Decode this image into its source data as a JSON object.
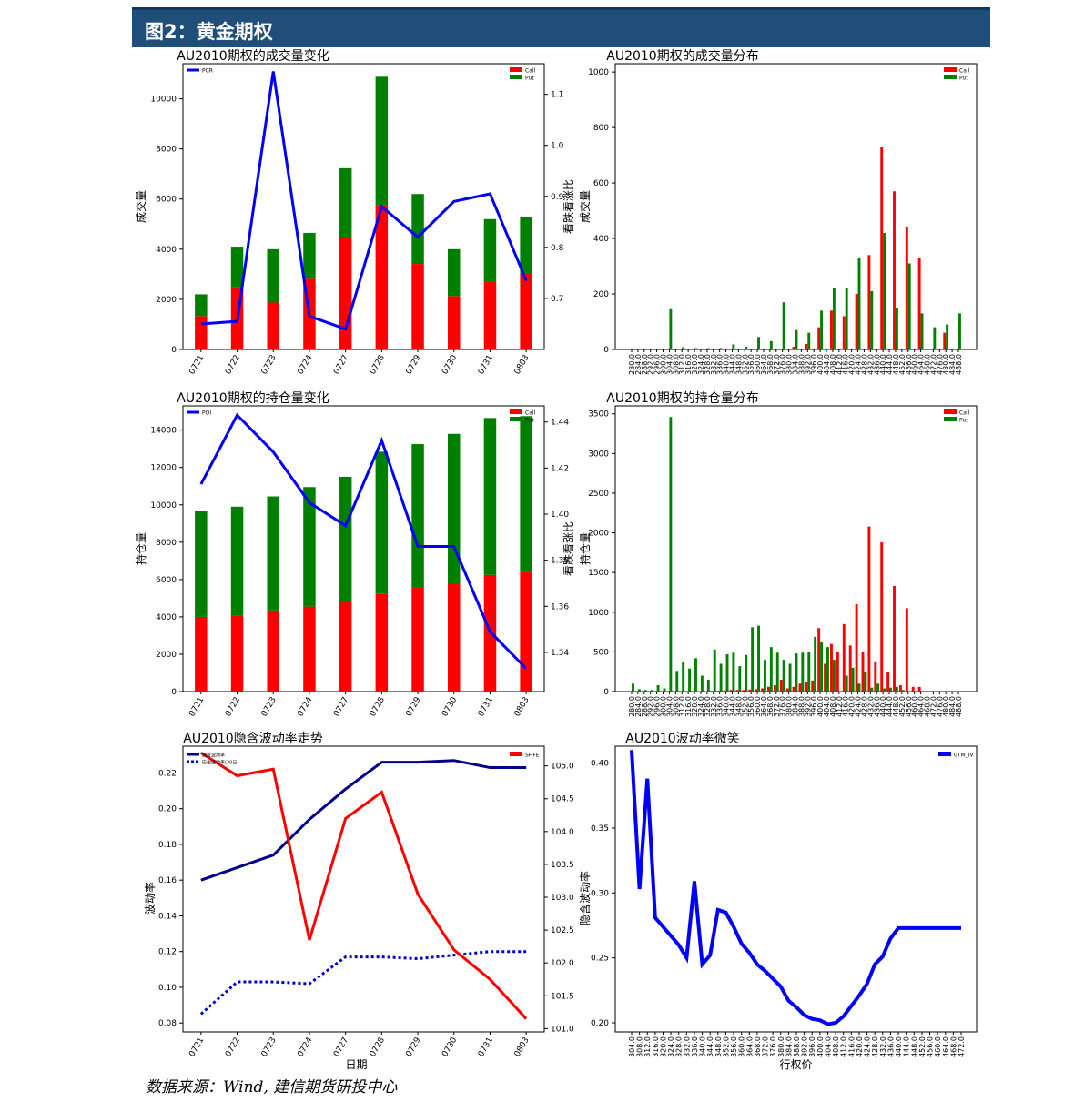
{
  "header": {
    "title": "图2：黄金期权"
  },
  "footer": {
    "source": "数据来源：Wind, 建信期货研投中心"
  },
  "colors": {
    "call": "#ff0000",
    "put": "#008000",
    "pcr": "#0000ff",
    "iv": "#00008b",
    "hv": "#0000cd",
    "fut": "#ff0000",
    "smile": "#0000ff"
  },
  "chart_data": [
    {
      "id": "volume-change",
      "type": "bar",
      "title": "AU2010期权的成交量变化",
      "ylabel": "成交量",
      "y2label": "看跌看涨比",
      "categories": [
        "0721",
        "0722",
        "0723",
        "0724",
        "0727",
        "0728",
        "0729",
        "0730",
        "0731",
        "0803"
      ],
      "series": [
        {
          "name": "Call",
          "values": [
            1330,
            2500,
            1870,
            2820,
            4430,
            5760,
            3410,
            2130,
            2720,
            3050
          ]
        },
        {
          "name": "Put",
          "values": [
            870,
            1600,
            2130,
            1830,
            2800,
            5120,
            2790,
            1870,
            2480,
            2220
          ]
        }
      ],
      "line": {
        "name": "PCR",
        "values": [
          0.65,
          0.655,
          1.145,
          0.665,
          0.64,
          0.88,
          0.82,
          0.89,
          0.905,
          0.735
        ]
      },
      "ylim": [
        0,
        11400
      ],
      "y2lim": [
        0.6,
        1.16
      ],
      "yticks": [
        0,
        2000,
        4000,
        6000,
        8000,
        10000
      ],
      "y2ticks": [
        0.7,
        0.8,
        0.9,
        1.0,
        1.1
      ],
      "y2ticklabels": [
        "0.7",
        "0.8",
        "0.9",
        "1.0",
        "1.1"
      ]
    },
    {
      "id": "volume-dist",
      "type": "bar",
      "title": "AU2010期权的成交量分布",
      "ylabel": "成交量",
      "categories": [
        "280.0",
        "284.0",
        "288.0",
        "292.0",
        "296.0",
        "300.0",
        "304.0",
        "308.0",
        "312.0",
        "316.0",
        "320.0",
        "324.0",
        "328.0",
        "332.0",
        "336.0",
        "340.0",
        "344.0",
        "348.0",
        "352.0",
        "356.0",
        "360.0",
        "364.0",
        "368.0",
        "372.0",
        "376.0",
        "380.0",
        "384.0",
        "388.0",
        "392.0",
        "396.0",
        "400.0",
        "404.0",
        "408.0",
        "412.0",
        "416.0",
        "420.0",
        "424.0",
        "428.0",
        "432.0",
        "436.0",
        "440.0",
        "444.0",
        "448.0",
        "452.0",
        "456.0",
        "460.0",
        "464.0",
        "468.0",
        "472.0",
        "476.0",
        "480.0",
        "484.0",
        "488.0"
      ],
      "series": [
        {
          "name": "Call",
          "values": [
            0,
            0,
            0,
            0,
            0,
            0,
            0,
            0,
            0,
            0,
            0,
            0,
            0,
            0,
            0,
            0,
            0,
            0,
            0,
            0,
            0,
            0,
            0,
            0,
            0,
            0,
            10,
            0,
            20,
            0,
            80,
            0,
            140,
            0,
            120,
            0,
            200,
            0,
            340,
            0,
            730,
            0,
            570,
            0,
            440,
            0,
            330,
            0,
            0,
            0,
            60,
            0,
            0
          ]
        },
        {
          "name": "Put",
          "values": [
            0,
            0,
            0,
            0,
            0,
            0,
            145,
            0,
            8,
            0,
            5,
            0,
            5,
            0,
            5,
            0,
            18,
            0,
            10,
            0,
            45,
            0,
            30,
            0,
            170,
            0,
            70,
            0,
            60,
            0,
            140,
            0,
            220,
            0,
            220,
            0,
            330,
            0,
            210,
            0,
            420,
            0,
            150,
            0,
            310,
            0,
            130,
            0,
            80,
            0,
            90,
            0,
            130
          ]
        }
      ],
      "ylim": [
        0,
        1030
      ],
      "yticks": [
        0,
        200,
        400,
        600,
        800,
        1000
      ]
    },
    {
      "id": "oi-change",
      "type": "bar",
      "title": "AU2010期权的持仓量变化",
      "ylabel": "持仓量",
      "y2label": "看跌看涨比",
      "categories": [
        "0721",
        "0722",
        "0723",
        "0724",
        "0727",
        "0728",
        "0729",
        "0730",
        "0731",
        "0803"
      ],
      "series": [
        {
          "name": "Call",
          "values": [
            4000,
            4050,
            4350,
            4550,
            4850,
            5250,
            5600,
            5800,
            6250,
            6400
          ]
        },
        {
          "name": "Put",
          "values": [
            5650,
            5850,
            6100,
            6400,
            6650,
            7600,
            7650,
            8000,
            8400,
            8350
          ]
        }
      ],
      "line": {
        "name": "POI",
        "values": [
          1.413,
          1.443,
          1.427,
          1.405,
          1.395,
          1.432,
          1.386,
          1.386,
          1.349,
          1.333
        ]
      },
      "ylim": [
        0,
        15300
      ],
      "y2lim": [
        1.323,
        1.447
      ],
      "yticks": [
        0,
        2000,
        4000,
        6000,
        8000,
        10000,
        12000,
        14000
      ],
      "y2ticks": [
        1.34,
        1.36,
        1.38,
        1.4,
        1.42,
        1.44
      ],
      "y2ticklabels": [
        "1.34",
        "1.36",
        "1.38",
        "1.40",
        "1.42",
        "1.44"
      ]
    },
    {
      "id": "oi-dist",
      "type": "bar",
      "title": "AU2010期权的持仓量分布",
      "ylabel": "持仓量",
      "categories": [
        "280.0",
        "284.0",
        "288.0",
        "292.0",
        "296.0",
        "300.0",
        "304.0",
        "308.0",
        "312.0",
        "316.0",
        "320.0",
        "324.0",
        "328.0",
        "332.0",
        "336.0",
        "340.0",
        "344.0",
        "348.0",
        "352.0",
        "356.0",
        "360.0",
        "364.0",
        "368.0",
        "372.0",
        "376.0",
        "380.0",
        "384.0",
        "388.0",
        "392.0",
        "396.0",
        "400.0",
        "404.0",
        "408.0",
        "412.0",
        "416.0",
        "420.0",
        "424.0",
        "428.0",
        "432.0",
        "436.0",
        "440.0",
        "444.0",
        "448.0",
        "452.0",
        "456.0",
        "460.0",
        "464.0",
        "468.0",
        "472.0",
        "476.0",
        "480.0",
        "484.0",
        "488.0"
      ],
      "series": [
        {
          "name": "Call",
          "values": [
            0,
            0,
            0,
            0,
            0,
            0,
            0,
            0,
            0,
            0,
            0,
            5,
            5,
            10,
            10,
            15,
            20,
            20,
            20,
            25,
            30,
            40,
            60,
            80,
            150,
            40,
            60,
            100,
            120,
            140,
            800,
            350,
            600,
            500,
            850,
            580,
            1100,
            500,
            2080,
            380,
            1880,
            250,
            1330,
            80,
            1050,
            60,
            60,
            0,
            0,
            0,
            0,
            0,
            0
          ]
        },
        {
          "name": "Put",
          "values": [
            100,
            30,
            20,
            20,
            80,
            40,
            3460,
            260,
            380,
            290,
            420,
            200,
            150,
            530,
            350,
            470,
            490,
            320,
            460,
            810,
            830,
            400,
            560,
            490,
            400,
            350,
            480,
            490,
            500,
            690,
            620,
            560,
            400,
            0,
            200,
            300,
            100,
            250,
            50,
            100,
            40,
            50,
            60,
            20,
            0,
            0,
            0,
            0,
            0,
            0,
            0,
            0,
            0
          ]
        }
      ],
      "ylim": [
        0,
        3600
      ],
      "yticks": [
        0,
        500,
        1000,
        1500,
        2000,
        2500,
        3000,
        3500
      ]
    },
    {
      "id": "iv-trend",
      "type": "line",
      "title": "AU2010隐含波动率走势",
      "xlabel": "日期",
      "ylabel": "波动率",
      "categories": [
        "0721",
        "0722",
        "0723",
        "0724",
        "0727",
        "0728",
        "0729",
        "0730",
        "0731",
        "0803"
      ],
      "series": [
        {
          "name": "隐含波动率",
          "axis": "left",
          "style": "solid",
          "values": [
            0.16,
            0.167,
            0.174,
            0.194,
            0.211,
            0.226,
            0.226,
            0.227,
            0.223,
            0.223
          ]
        },
        {
          "name": "历史波动率(30日)",
          "axis": "left",
          "style": "dotted",
          "values": [
            0.085,
            0.103,
            0.103,
            0.102,
            0.117,
            0.117,
            0.116,
            0.118,
            0.12,
            0.12
          ]
        },
        {
          "name": "SHFE",
          "axis": "right",
          "style": "solid",
          "values": [
            105.2,
            104.85,
            104.95,
            102.35,
            104.2,
            104.6,
            103.05,
            102.2,
            101.75,
            101.15
          ]
        }
      ],
      "ylim": [
        0.075,
        0.235
      ],
      "y2lim": [
        100.95,
        105.3
      ],
      "yticks": [
        0.08,
        0.1,
        0.12,
        0.14,
        0.16,
        0.18,
        0.2,
        0.22
      ],
      "yticklabels": [
        "0.08",
        "0.10",
        "0.12",
        "0.14",
        "0.16",
        "0.18",
        "0.20",
        "0.22"
      ],
      "y2ticks": [
        101.0,
        101.5,
        102.0,
        102.5,
        103.0,
        103.5,
        104.0,
        104.5,
        105.0
      ],
      "y2ticklabels": [
        "101.0",
        "101.5",
        "102.0",
        "102.5",
        "103.0",
        "103.5",
        "104.0",
        "104.5",
        "105.0"
      ]
    },
    {
      "id": "iv-smile",
      "type": "line",
      "title": "AU2010波动率微笑",
      "xlabel": "行权价",
      "ylabel": "隐含波动率",
      "categories": [
        "304.0",
        "308.0",
        "312.0",
        "316.0",
        "320.0",
        "324.0",
        "328.0",
        "332.0",
        "336.0",
        "340.0",
        "344.0",
        "348.0",
        "352.0",
        "356.0",
        "360.0",
        "364.0",
        "368.0",
        "372.0",
        "376.0",
        "380.0",
        "384.0",
        "388.0",
        "392.0",
        "396.0",
        "400.0",
        "404.0",
        "408.0",
        "412.0",
        "416.0",
        "420.0",
        "424.0",
        "428.0",
        "432.0",
        "436.0",
        "440.0",
        "444.0",
        "448.0",
        "452.0",
        "456.0",
        "460.0",
        "464.0",
        "468.0",
        "472.0"
      ],
      "xticklabels": [
        "304.0",
        "308.0",
        "312.0",
        "316.0",
        "320.0",
        "324.0",
        "328.0",
        "332.0",
        "336.0",
        "340.0",
        "344.0",
        "348.0",
        "352.0",
        "356.0",
        "360.0",
        "364.0",
        "368.0",
        "372.0",
        "376.0",
        "380.0",
        "384.0",
        "388.0",
        "392.0",
        "396.0",
        "400.0",
        "404.0",
        "408.0",
        "412.0",
        "416.0",
        "420.0",
        "424.0",
        "428.0",
        "432.0",
        "436.0",
        "440.0",
        "444.0",
        "448.0",
        "452.0",
        "456.0",
        "460.0",
        "464.0",
        "468.0",
        "472.0"
      ],
      "series": [
        {
          "name": "0TM_IV",
          "values": [
            0.41,
            0.303,
            0.388,
            0.281,
            0.274,
            0.267,
            0.26,
            0.25,
            0.309,
            0.245,
            0.252,
            0.287,
            0.285,
            0.274,
            0.261,
            0.254,
            0.245,
            0.24,
            0.234,
            0.228,
            0.217,
            0.212,
            0.206,
            0.203,
            0.202,
            0.199,
            0.2,
            0.205,
            0.213,
            0.221,
            0.23,
            0.245,
            0.251,
            0.265,
            0.273,
            0.273,
            0.273,
            0.273,
            0.273,
            0.273,
            0.273,
            0.273,
            0.273
          ]
        }
      ],
      "ylim": [
        0.193,
        0.413
      ],
      "yticks": [
        0.2,
        0.25,
        0.3,
        0.35,
        0.4
      ],
      "yticklabels": [
        "0.20",
        "0.25",
        "0.30",
        "0.35",
        "0.40"
      ]
    }
  ]
}
